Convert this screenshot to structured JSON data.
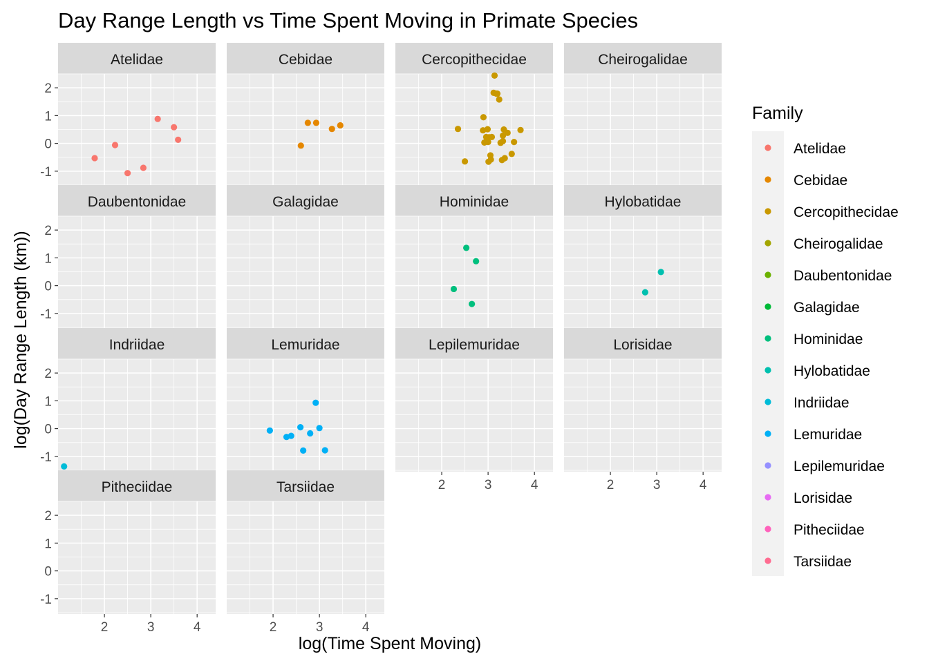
{
  "chart_data": {
    "type": "scatter",
    "title": "Day Range Length vs Time Spent Moving in Primate Species",
    "xlabel": "log(Time Spent Moving)",
    "ylabel": "log(Day Range Length (km))",
    "xlim": [
      1.0,
      4.4
    ],
    "ylim": [
      -1.55,
      2.5
    ],
    "x_ticks": [
      2,
      3,
      4
    ],
    "y_ticks": [
      -1,
      0,
      1,
      2
    ],
    "x_tick_labels": [
      "2",
      "3",
      "4"
    ],
    "y_tick_labels": [
      "-1",
      "0",
      "1",
      "2"
    ],
    "grid": true,
    "legend": {
      "title": "Family",
      "position": "right"
    },
    "facets": [
      {
        "name": "Atelidae",
        "color": "#F8766D",
        "points": [
          [
            1.79,
            -0.53
          ],
          [
            2.23,
            -0.06
          ],
          [
            2.5,
            -1.07
          ],
          [
            2.84,
            -0.88
          ],
          [
            3.15,
            0.88
          ],
          [
            3.5,
            0.58
          ],
          [
            3.59,
            0.13
          ]
        ]
      },
      {
        "name": "Cebidae",
        "color": "#E58700",
        "points": [
          [
            2.6,
            -0.08
          ],
          [
            2.75,
            0.74
          ],
          [
            2.93,
            0.74
          ],
          [
            3.27,
            0.52
          ],
          [
            3.45,
            0.65
          ]
        ]
      },
      {
        "name": "Cercopithecidae",
        "color": "#C99800",
        "points": [
          [
            2.35,
            0.52
          ],
          [
            2.5,
            -0.65
          ],
          [
            2.89,
            0.47
          ],
          [
            2.9,
            0.94
          ],
          [
            2.92,
            0.03
          ],
          [
            2.96,
            0.23
          ],
          [
            2.99,
            0.51
          ],
          [
            3.0,
            0.05
          ],
          [
            3.01,
            -0.66
          ],
          [
            3.02,
            0.22
          ],
          [
            3.05,
            -0.43
          ],
          [
            3.06,
            -0.58
          ],
          [
            3.08,
            0.23
          ],
          [
            3.12,
            1.82
          ],
          [
            3.14,
            2.44
          ],
          [
            3.18,
            1.79
          ],
          [
            3.2,
            1.79
          ],
          [
            3.24,
            1.58
          ],
          [
            3.27,
            0.02
          ],
          [
            3.3,
            -0.6
          ],
          [
            3.32,
            0.28
          ],
          [
            3.32,
            0.08
          ],
          [
            3.34,
            0.5
          ],
          [
            3.36,
            -0.53
          ],
          [
            3.42,
            0.38
          ],
          [
            3.51,
            -0.38
          ],
          [
            3.56,
            0.05
          ],
          [
            3.7,
            0.48
          ]
        ]
      },
      {
        "name": "Cheirogalidae",
        "color": "#A3A500",
        "points": []
      },
      {
        "name": "Daubentonidae",
        "color": "#6BB100",
        "points": []
      },
      {
        "name": "Galagidae",
        "color": "#00BA38",
        "points": []
      },
      {
        "name": "Hominidae",
        "color": "#00BF7D",
        "points": [
          [
            2.26,
            -0.12
          ],
          [
            2.53,
            1.36
          ],
          [
            2.65,
            -0.66
          ],
          [
            2.74,
            0.88
          ]
        ]
      },
      {
        "name": "Hylobatidae",
        "color": "#00C0AF",
        "points": [
          [
            2.75,
            -0.24
          ],
          [
            3.09,
            0.49
          ]
        ]
      },
      {
        "name": "Indriidae",
        "color": "#00BCD8",
        "points": [
          [
            1.13,
            -1.36
          ]
        ]
      },
      {
        "name": "Lemuridae",
        "color": "#00B0F6",
        "points": [
          [
            1.93,
            -0.07
          ],
          [
            2.29,
            -0.3
          ],
          [
            2.39,
            -0.26
          ],
          [
            2.59,
            0.05
          ],
          [
            2.65,
            -0.79
          ],
          [
            2.8,
            -0.17
          ],
          [
            2.92,
            0.93
          ],
          [
            3.0,
            0.02
          ],
          [
            3.12,
            -0.78
          ]
        ]
      },
      {
        "name": "Lepilemuridae",
        "color": "#9590FF",
        "points": []
      },
      {
        "name": "Lorisidae",
        "color": "#E76BF3",
        "points": []
      },
      {
        "name": "Pitheciidae",
        "color": "#FF62BC",
        "points": []
      },
      {
        "name": "Tarsiidae",
        "color": "#FF6C91",
        "points": []
      }
    ]
  },
  "colors": {
    "panel_background": "#EBEBEB",
    "strip_background": "#D9D9D9",
    "grid_major": "#FFFFFF",
    "legend_key_background": "#F2F2F2"
  }
}
